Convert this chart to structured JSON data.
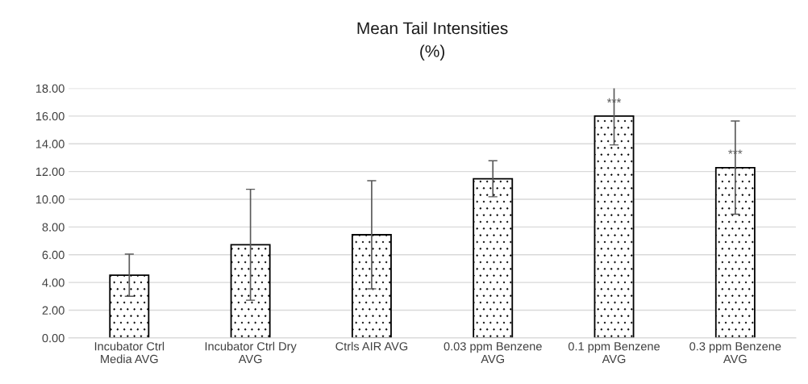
{
  "chart_data": {
    "type": "bar",
    "title": "Mean Tail Intensities\n(%)",
    "categories": [
      "Incubator Ctrl\nMedia AVG",
      "Incubator Ctrl Dry\nAVG",
      "Ctrls AIR AVG",
      "0.03 ppm Benzene\nAVG",
      "0.1 ppm Benzene\nAVG",
      "0.3 ppm Benzene\nAVG"
    ],
    "series": [
      {
        "color": "#000000",
        "values": [
          4.52,
          6.72,
          7.44,
          11.48,
          16.0,
          12.28
        ],
        "errors": [
          1.52,
          4.0,
          3.9,
          1.3,
          2.08,
          3.36
        ]
      }
    ],
    "ylim": [
      0,
      18
    ],
    "yticks": [
      {
        "value": 0,
        "label": "0.00"
      },
      {
        "value": 2,
        "label": "2.00"
      },
      {
        "value": 4,
        "label": "4.00"
      },
      {
        "value": 6,
        "label": "6.00"
      },
      {
        "value": 8,
        "label": "8.00"
      },
      {
        "value": 10,
        "label": "10.00"
      },
      {
        "value": 12,
        "label": "12.00"
      },
      {
        "value": 14,
        "label": "14.00"
      },
      {
        "value": 16,
        "label": "16.00"
      },
      {
        "value": 18,
        "label": "18.00"
      }
    ],
    "grid": "y",
    "annotations": [
      {
        "text": "***",
        "x": "0.1 ppm Benzene\nAVG",
        "y": 16.9
      },
      {
        "text": "***",
        "x": "0.3 ppm Benzene\nAVG",
        "y": 13.2
      }
    ]
  }
}
